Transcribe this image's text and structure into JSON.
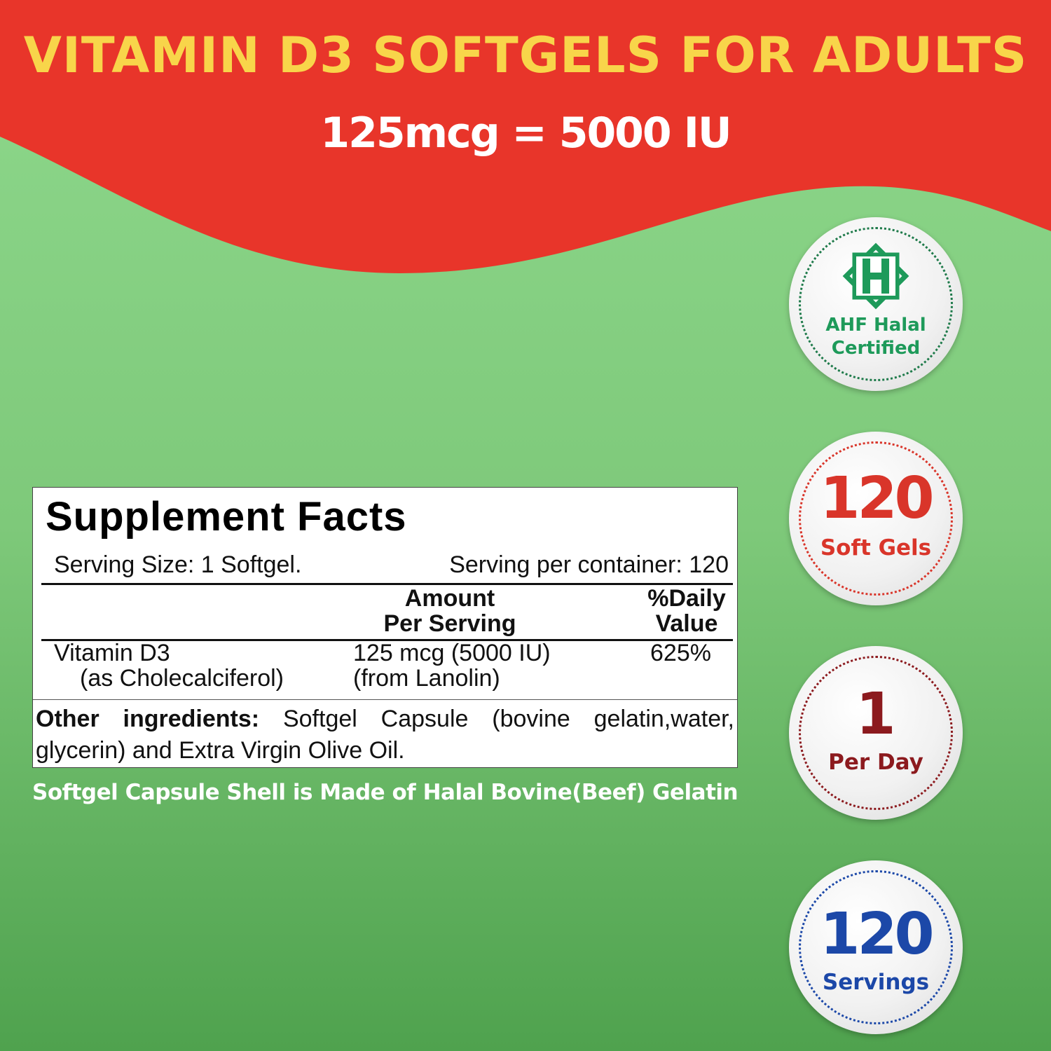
{
  "header": {
    "title": "VITAMIN D3 SOFTGELS FOR ADULTS",
    "subtitle": "125mcg = 5000 IU"
  },
  "facts": {
    "heading": "Supplement Facts",
    "serving_size": "Serving Size: 1 Softgel.",
    "servings_per_container": "Serving per container: 120",
    "col_amount_1": "Amount",
    "col_amount_2": "Per Serving",
    "col_dv_1": "%Daily",
    "col_dv_2": "Value",
    "row": {
      "name": "Vitamin D3",
      "name_sub": "(as Cholecalciferol)",
      "amount": "125 mcg (5000 IU)",
      "amount_sub": "(from Lanolin)",
      "dv": "625%"
    },
    "other_label": "Other ingredients:",
    "other_text_1": "Softgel Capsule (bovine gelatin,water,",
    "other_text_2": "glycerin) and Extra Virgin Olive Oil."
  },
  "note": "Softgel Capsule Shell is Made of Halal Bovine(Beef) Gelatin",
  "badges": [
    {
      "icon": "halal-h-star-icon",
      "line1": "AHF Halal",
      "line2": "Certified",
      "color": "#1e9a5a"
    },
    {
      "value": "120",
      "label": "Soft Gels",
      "color": "#d9352a"
    },
    {
      "value": "1",
      "label": "Per Day",
      "color": "#8c1a1e"
    },
    {
      "value": "120",
      "label": "Servings",
      "color": "#1c48a8"
    }
  ],
  "colors": {
    "red": "#e8352a",
    "yellow": "#f8d54a",
    "green_top": "#8ed88c",
    "green_bottom": "#4fa24e"
  }
}
